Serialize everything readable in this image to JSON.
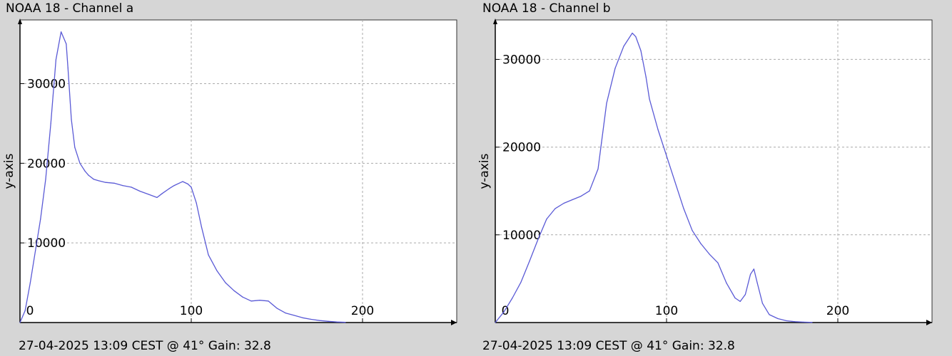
{
  "chart_data": [
    {
      "type": "line",
      "title": "NOAA 18 - Channel a",
      "footer": "27-04-2025 13:09 CEST @ 41° Gain: 32.8",
      "xlabel": "",
      "ylabel": "y-axis",
      "xlim": [
        0,
        255
      ],
      "ylim": [
        0,
        38000
      ],
      "xticks": [
        0,
        100,
        200
      ],
      "yticks": [
        10000,
        20000,
        30000
      ],
      "grid": true,
      "line_color": "#5a5ad6",
      "x": [
        0,
        3,
        6,
        9,
        12,
        15,
        18,
        21,
        24,
        27,
        28,
        30,
        32,
        35,
        38,
        40,
        43,
        46,
        50,
        55,
        60,
        65,
        70,
        75,
        80,
        83,
        87,
        90,
        95,
        98,
        100,
        103,
        106,
        110,
        115,
        120,
        125,
        130,
        135,
        140,
        145,
        150,
        155,
        160,
        165,
        170,
        175,
        180,
        185,
        190
      ],
      "y": [
        0,
        1500,
        5000,
        9000,
        13000,
        18000,
        25000,
        33000,
        36500,
        35000,
        32000,
        25500,
        22000,
        20000,
        19000,
        18500,
        18000,
        17800,
        17600,
        17500,
        17200,
        17000,
        16500,
        16100,
        15700,
        16200,
        16800,
        17200,
        17700,
        17400,
        17000,
        15000,
        12000,
        8500,
        6500,
        5000,
        4000,
        3200,
        2700,
        2800,
        2700,
        1800,
        1200,
        900,
        600,
        400,
        250,
        150,
        70,
        30
      ]
    },
    {
      "type": "line",
      "title": "NOAA 18 - Channel b",
      "footer": "27-04-2025 13:09 CEST @ 41° Gain: 32.8",
      "xlabel": "",
      "ylabel": "y-axis",
      "xlim": [
        0,
        255
      ],
      "ylim": [
        0,
        34500
      ],
      "xticks": [
        0,
        100,
        200
      ],
      "yticks": [
        10000,
        20000,
        30000
      ],
      "grid": true,
      "line_color": "#5a5ad6",
      "x": [
        0,
        5,
        10,
        15,
        20,
        25,
        30,
        35,
        40,
        45,
        50,
        55,
        60,
        62,
        65,
        70,
        75,
        80,
        82,
        85,
        88,
        90,
        95,
        100,
        105,
        110,
        115,
        120,
        125,
        130,
        135,
        140,
        143,
        146,
        149,
        151,
        153,
        156,
        160,
        165,
        170,
        175,
        180,
        185
      ],
      "y": [
        0,
        1200,
        2800,
        4600,
        7000,
        9500,
        11800,
        13000,
        13600,
        14000,
        14400,
        15000,
        17500,
        20500,
        25000,
        29000,
        31500,
        33000,
        32600,
        31000,
        28000,
        25500,
        22000,
        19000,
        16000,
        13000,
        10500,
        9000,
        7800,
        6800,
        4500,
        2800,
        2400,
        3200,
        5500,
        6100,
        4500,
        2200,
        900,
        450,
        200,
        100,
        50,
        20
      ]
    }
  ]
}
